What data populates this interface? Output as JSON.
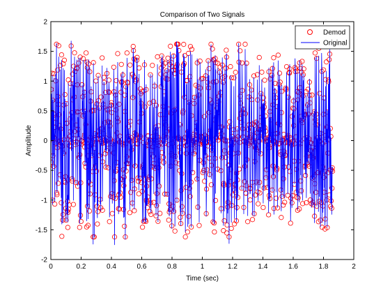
{
  "chart_data": {
    "type": "line",
    "title": "Comparison of Two Signals",
    "xlabel": "Time (sec)",
    "ylabel": "Amplitude",
    "xlim": [
      0,
      2
    ],
    "ylim": [
      -2,
      2
    ],
    "xticks": [
      "0",
      "0.2",
      "0.4",
      "0.6",
      "0.8",
      "1",
      "1.2",
      "1.4",
      "1.6",
      "1.8",
      "2"
    ],
    "yticks": [
      "-2",
      "-1.5",
      "-1",
      "-0.5",
      "0",
      "0.5",
      "1",
      "1.5",
      "2"
    ],
    "grid": false,
    "legend_position": "top-right",
    "x_range_of_data": [
      0,
      1.86
    ],
    "sample_count": 1000,
    "amplitude_range": [
      -1.8,
      1.7
    ],
    "series": [
      {
        "name": "Demod",
        "marker": "circle",
        "style": "markers-only",
        "color": "#ff0000"
      },
      {
        "name": "Original",
        "marker": "none",
        "style": "line",
        "color": "#0000ff"
      }
    ]
  }
}
